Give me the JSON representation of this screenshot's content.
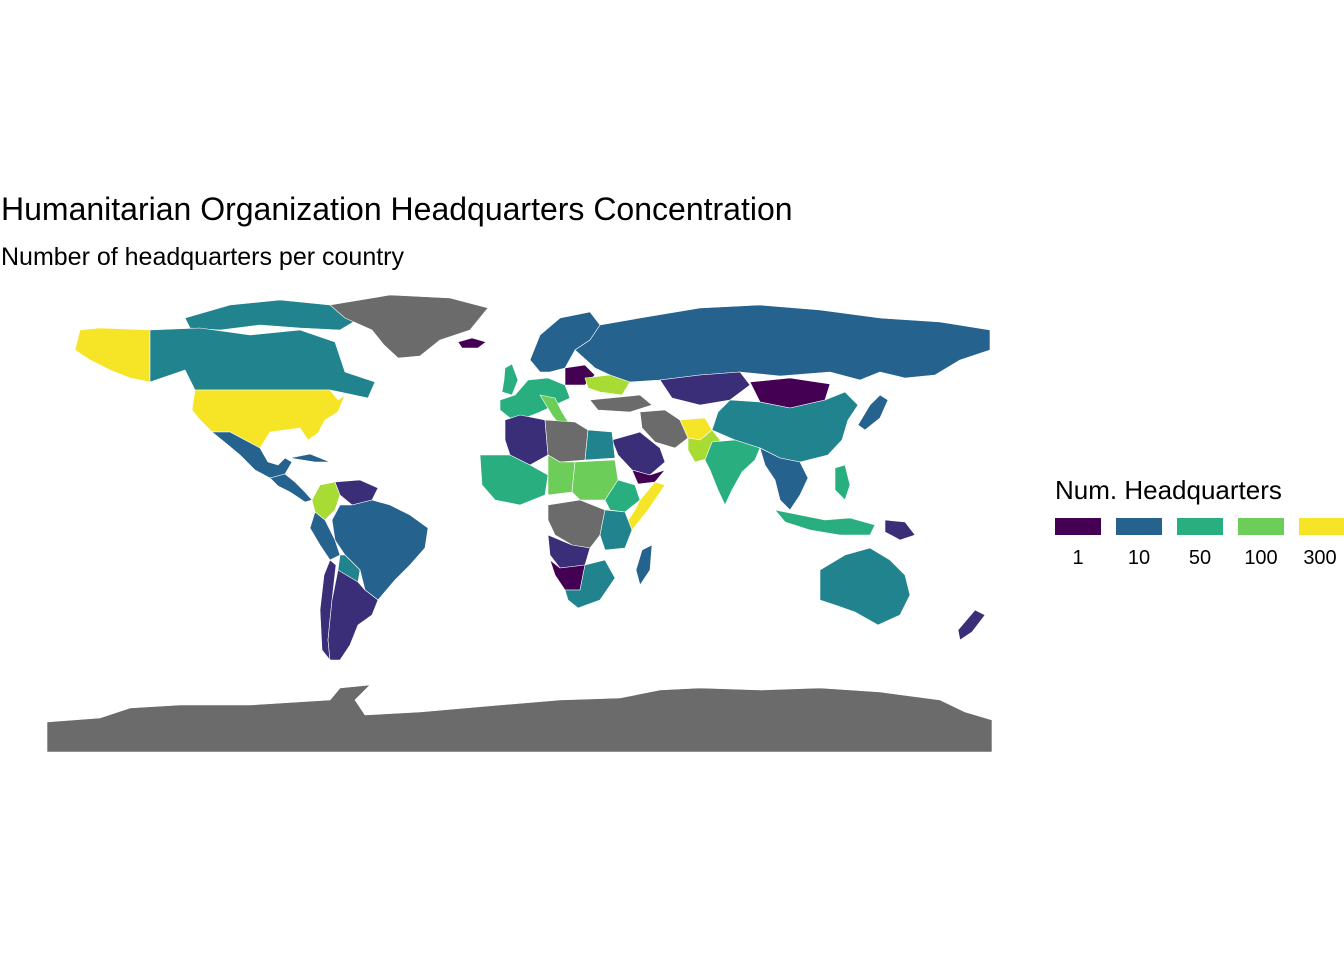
{
  "chart_data": {
    "type": "choropleth",
    "title": "Humanitarian Organization Headquarters Concentration",
    "subtitle": "Number of headquarters per country",
    "legend": {
      "title": "Num. Headquarters",
      "placement": "right",
      "breaks": [
        {
          "label": "1",
          "color": "#440154"
        },
        {
          "label": "10",
          "color": "#26628e"
        },
        {
          "label": "50",
          "color": "#29af7f"
        },
        {
          "label": "100",
          "color": "#6cce59"
        },
        {
          "label": "300",
          "color": "#f6e526"
        }
      ]
    },
    "colors": {
      "no_data": "#6b6b6b",
      "v1": "#440154",
      "v2": "#3b2e78",
      "v3": "#26628e",
      "v4": "#21838d",
      "v5": "#29af7f",
      "v6": "#6cce59",
      "v7": "#a8db34",
      "v8": "#f6e526"
    },
    "regions": [
      {
        "name": "United States",
        "fill": "v8"
      },
      {
        "name": "Alaska",
        "fill": "v8"
      },
      {
        "name": "Canada",
        "fill": "v4"
      },
      {
        "name": "Canadian Arctic",
        "fill": "v4"
      },
      {
        "name": "Greenland",
        "fill": "no_data"
      },
      {
        "name": "Iceland",
        "fill": "v1"
      },
      {
        "name": "Mexico",
        "fill": "v3"
      },
      {
        "name": "Central America",
        "fill": "v3"
      },
      {
        "name": "Cuba",
        "fill": "v3"
      },
      {
        "name": "Colombia",
        "fill": "v7"
      },
      {
        "name": "Venezuela",
        "fill": "v2"
      },
      {
        "name": "Brazil",
        "fill": "v3"
      },
      {
        "name": "Peru",
        "fill": "v3"
      },
      {
        "name": "Bolivia",
        "fill": "v4"
      },
      {
        "name": "Argentina",
        "fill": "v2"
      },
      {
        "name": "Chile",
        "fill": "v2"
      },
      {
        "name": "United Kingdom",
        "fill": "v5"
      },
      {
        "name": "Western Europe",
        "fill": "v5"
      },
      {
        "name": "Italy",
        "fill": "v6"
      },
      {
        "name": "Scandinavia",
        "fill": "v3"
      },
      {
        "name": "Poland",
        "fill": "v1"
      },
      {
        "name": "Ukraine",
        "fill": "v7"
      },
      {
        "name": "Russia",
        "fill": "v3"
      },
      {
        "name": "Kazakhstan",
        "fill": "v2"
      },
      {
        "name": "Mongolia",
        "fill": "v1"
      },
      {
        "name": "China",
        "fill": "v4"
      },
      {
        "name": "India",
        "fill": "v5"
      },
      {
        "name": "Pakistan",
        "fill": "v7"
      },
      {
        "name": "Afghanistan",
        "fill": "v8"
      },
      {
        "name": "Iran",
        "fill": "no_data"
      },
      {
        "name": "Saudi Arabia",
        "fill": "v2"
      },
      {
        "name": "Yemen",
        "fill": "v1"
      },
      {
        "name": "Algeria",
        "fill": "v2"
      },
      {
        "name": "Libya",
        "fill": "no_data"
      },
      {
        "name": "Egypt",
        "fill": "v4"
      },
      {
        "name": "Sahel",
        "fill": "v5"
      },
      {
        "name": "Sudan",
        "fill": "v6"
      },
      {
        "name": "Chad",
        "fill": "v6"
      },
      {
        "name": "Ethiopia",
        "fill": "v5"
      },
      {
        "name": "Somalia",
        "fill": "v8"
      },
      {
        "name": "DR Congo",
        "fill": "no_data"
      },
      {
        "name": "Angola",
        "fill": "v2"
      },
      {
        "name": "Namibia",
        "fill": "v1"
      },
      {
        "name": "Tanzania",
        "fill": "v4"
      },
      {
        "name": "South Africa",
        "fill": "v4"
      },
      {
        "name": "Madagascar",
        "fill": "v3"
      },
      {
        "name": "Southeast Asia",
        "fill": "v3"
      },
      {
        "name": "Japan",
        "fill": "v3"
      },
      {
        "name": "Philippines",
        "fill": "v5"
      },
      {
        "name": "Indonesia",
        "fill": "v5"
      },
      {
        "name": "Papua New Guinea",
        "fill": "v2"
      },
      {
        "name": "Australia",
        "fill": "v4"
      },
      {
        "name": "New Zealand",
        "fill": "v2"
      },
      {
        "name": "Antarctica",
        "fill": "no_data"
      }
    ]
  }
}
